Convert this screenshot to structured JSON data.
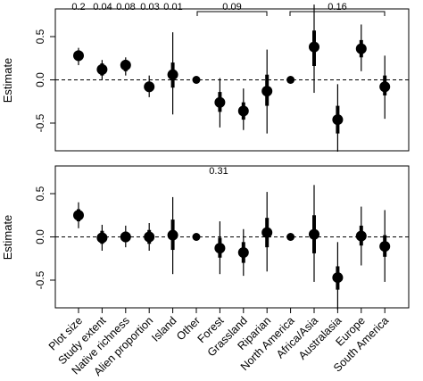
{
  "chart_data": {
    "type": "scatter",
    "categories": [
      "Plot size",
      "Study extent",
      "Native richness",
      "Alien proportion",
      "Island",
      "Other",
      "Forest",
      "Grassland",
      "Riparian",
      "North America",
      "Africa/Asia",
      "Australasia",
      "Europe",
      "South America"
    ],
    "panels": [
      {
        "ylabel": "Estimate",
        "ylim": [
          -0.82,
          0.82
        ],
        "yticks": [
          -0.5,
          0.0,
          0.5
        ],
        "ytick_labels": [
          "-0.5",
          "0.0",
          "0.5"
        ],
        "reference_line": 0,
        "estimates": [
          0.28,
          0.12,
          0.17,
          -0.08,
          0.06,
          0.0,
          -0.26,
          -0.36,
          -0.13,
          0.0,
          0.38,
          -0.46,
          0.36,
          -0.08
        ],
        "inner_interval": [
          [
            0.22,
            0.34
          ],
          [
            0.05,
            0.19
          ],
          [
            0.1,
            0.23
          ],
          [
            -0.14,
            -0.02
          ],
          [
            -0.09,
            0.2
          ],
          [
            0.0,
            0.0
          ],
          [
            -0.37,
            -0.14
          ],
          [
            -0.46,
            -0.26
          ],
          [
            -0.3,
            0.06
          ],
          [
            0.0,
            0.0
          ],
          [
            0.16,
            0.57
          ],
          [
            -0.62,
            -0.3
          ],
          [
            0.26,
            0.46
          ],
          [
            -0.18,
            0.05
          ]
        ],
        "outer_interval": [
          [
            0.17,
            0.37
          ],
          [
            0.0,
            0.23
          ],
          [
            0.05,
            0.26
          ],
          [
            -0.2,
            0.05
          ],
          [
            -0.4,
            0.55
          ],
          [
            0.0,
            0.0
          ],
          [
            -0.55,
            0.02
          ],
          [
            -0.58,
            -0.1
          ],
          [
            -0.62,
            0.35
          ],
          [
            0.0,
            0.0
          ],
          [
            -0.15,
            0.87
          ],
          [
            -0.83,
            -0.05
          ],
          [
            0.1,
            0.64
          ],
          [
            -0.45,
            0.28
          ]
        ],
        "annotations": [
          "0.2",
          "0.04",
          "0.08",
          "0.03",
          "0.01",
          "0.09",
          "0.16"
        ]
      },
      {
        "ylabel": "Estimate",
        "ylim": [
          -0.82,
          0.82
        ],
        "yticks": [
          -0.5,
          0.0,
          0.5
        ],
        "ytick_labels": [
          "-0.5",
          "0.0",
          "0.5"
        ],
        "reference_line": 0,
        "estimates": [
          0.25,
          -0.01,
          0.0,
          0.0,
          0.02,
          0.0,
          -0.13,
          -0.18,
          0.05,
          0.0,
          0.03,
          -0.47,
          0.01,
          -0.11
        ],
        "inner_interval": [
          [
            0.18,
            0.32
          ],
          [
            -0.08,
            0.07
          ],
          [
            -0.06,
            0.06
          ],
          [
            -0.08,
            0.08
          ],
          [
            -0.15,
            0.2
          ],
          [
            0.0,
            0.0
          ],
          [
            -0.24,
            -0.01
          ],
          [
            -0.3,
            -0.06
          ],
          [
            -0.12,
            0.22
          ],
          [
            0.0,
            0.0
          ],
          [
            -0.19,
            0.25
          ],
          [
            -0.61,
            -0.34
          ],
          [
            -0.1,
            0.13
          ],
          [
            -0.23,
            0.02
          ]
        ],
        "outer_interval": [
          [
            0.1,
            0.4
          ],
          [
            -0.16,
            0.14
          ],
          [
            -0.12,
            0.13
          ],
          [
            -0.16,
            0.16
          ],
          [
            -0.43,
            0.46
          ],
          [
            0.0,
            0.0
          ],
          [
            -0.43,
            0.18
          ],
          [
            -0.45,
            0.09
          ],
          [
            -0.4,
            0.52
          ],
          [
            0.0,
            0.0
          ],
          [
            -0.52,
            0.6
          ],
          [
            -0.84,
            -0.06
          ],
          [
            -0.33,
            0.35
          ],
          [
            -0.52,
            0.31
          ]
        ],
        "annotations": [
          "0.31"
        ]
      }
    ]
  }
}
